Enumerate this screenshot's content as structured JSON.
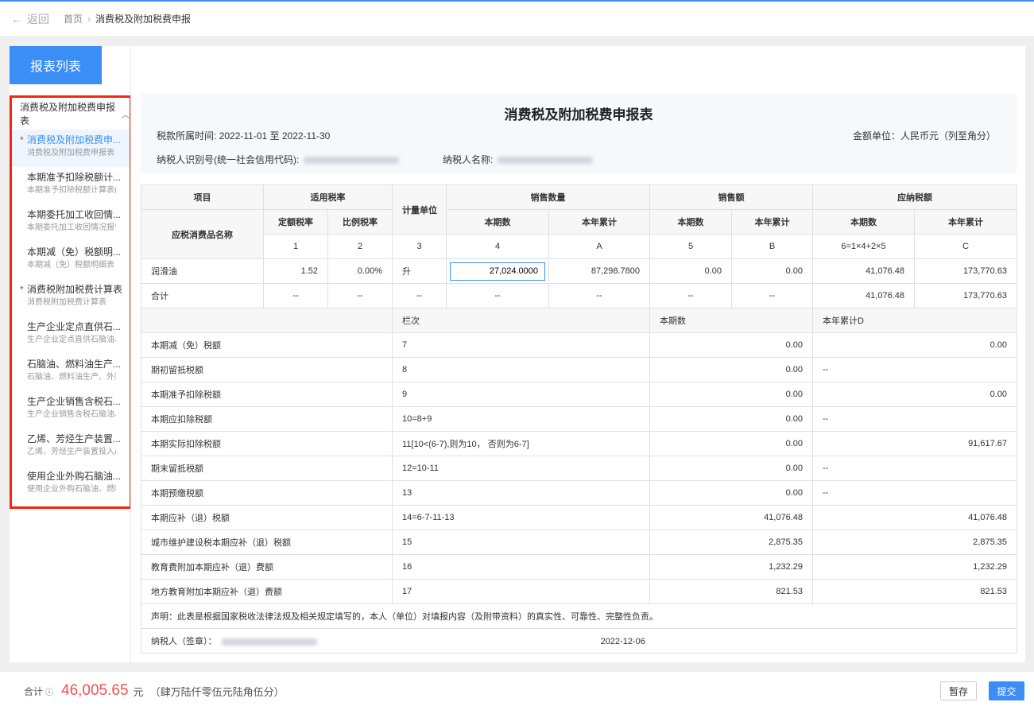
{
  "topbar": {
    "back": "返回",
    "breadcrumb": [
      "首页",
      "消费税及附加税费申报"
    ]
  },
  "sidebar": {
    "title": "报表列表",
    "group": "消费税及附加税费申报表",
    "items": [
      {
        "title": "消费税及附加税费申...",
        "sub": "消费税及附加税费申报表",
        "required": true,
        "active": true
      },
      {
        "title": "本期准予扣除税额计...",
        "sub": "本期准予扣除税额计算表(成",
        "required": false
      },
      {
        "title": "本期委托加工收回情...",
        "sub": "本期委托加工收回情况报告表",
        "required": false
      },
      {
        "title": "本期减（免）税额明...",
        "sub": "本期减（免）税额明细表",
        "required": false
      },
      {
        "title": "消费税附加税费计算表",
        "sub": "消费税附加税费计算表",
        "required": true
      },
      {
        "title": "生产企业定点直供石...",
        "sub": "生产企业定点直供石脑油、燃",
        "required": false
      },
      {
        "title": "石脑油、燃料油生产...",
        "sub": "石脑油、燃料油生产、外购、",
        "required": false
      },
      {
        "title": "生产企业销售含税石...",
        "sub": "生产企业销售含税石脑油、燃",
        "required": false
      },
      {
        "title": "乙烯、芳烃生产装置...",
        "sub": "乙烯、芳烃生产装置投入产出",
        "required": false
      },
      {
        "title": "使用企业外购石脑油...",
        "sub": "使用企业外购石脑油、燃料油",
        "required": false
      }
    ]
  },
  "report": {
    "title": "消费税及附加税费申报表",
    "period_label": "税款所属时间:",
    "period": "2022-11-01 至 2022-11-30",
    "unit": "金额单位：人民币元（列至角分）",
    "taxid_label": "纳税人识别号(统一社会信用代码):",
    "name_label": "纳税人名称:"
  },
  "table": {
    "h": {
      "item": "项目",
      "rate": "适用税率",
      "unit": "计量单位",
      "qty": "销售数量",
      "amount": "销售额",
      "tax": "应纳税额",
      "product": "应税消费品名称",
      "fixed": "定额税率",
      "ratio": "比例税率",
      "cur": "本期数",
      "ytd": "本年累计"
    },
    "idx": [
      "1",
      "2",
      "3",
      "4",
      "A",
      "5",
      "B",
      "6=1×4+2×5",
      "C"
    ],
    "row": {
      "name": "润滑油",
      "fixed": "1.52",
      "ratio": "0.00%",
      "unit": "升",
      "qty": "27,024.0000",
      "qty_ytd": "87,298.7800",
      "amt": "0.00",
      "amt_ytd": "0.00",
      "tax": "41,076.48",
      "tax_ytd": "173,770.63"
    },
    "total": {
      "name": "合计",
      "dash": "--",
      "tax": "41,076.48",
      "tax_ytd": "173,770.63"
    },
    "lower_head": {
      "col": "栏次",
      "cur": "本期数",
      "ytd": "本年累计D"
    },
    "lower": [
      {
        "name": "本期减（免）税额",
        "col": "7",
        "cur": "0.00",
        "ytd": "0.00"
      },
      {
        "name": "期初留抵税额",
        "col": "8",
        "cur": "0.00",
        "ytd": "--"
      },
      {
        "name": "本期准予扣除税额",
        "col": "9",
        "cur": "0.00",
        "ytd": "0.00"
      },
      {
        "name": "本期应扣除税额",
        "col": "10=8+9",
        "cur": "0.00",
        "ytd": "--"
      },
      {
        "name": "本期实际扣除税额",
        "col": "11[10<(6-7),则为10， 否则为6-7]",
        "cur": "0.00",
        "ytd": "91,617.67"
      },
      {
        "name": "期末留抵税额",
        "col": "12=10-11",
        "cur": "0.00",
        "ytd": "--"
      },
      {
        "name": "本期预缴税额",
        "col": "13",
        "cur": "0.00",
        "ytd": "--"
      },
      {
        "name": "本期应补（退）税额",
        "col": "14=6-7-11-13",
        "cur": "41,076.48",
        "ytd": "41,076.48"
      },
      {
        "name": "城市维护建设税本期应补（退）税额",
        "col": "15",
        "cur": "2,875.35",
        "ytd": "2,875.35"
      },
      {
        "name": "教育费附加本期应补（退）费额",
        "col": "16",
        "cur": "1,232.29",
        "ytd": "1,232.29"
      },
      {
        "name": "地方教育附加本期应补（退）费额",
        "col": "17",
        "cur": "821.53",
        "ytd": "821.53"
      }
    ],
    "declaration": "声明：此表是根据国家税收法律法规及相关规定填写的，本人（单位）对填报内容（及附带资料）的真实性、可靠性、完整性负责。",
    "signer_label": "纳税人（签章）：",
    "sign_date": "2022-12-06"
  },
  "footer": {
    "label": "合计",
    "amount": "46,005.65",
    "currency": "元",
    "amount_cn": "（肆万陆仟零伍元陆角伍分）",
    "save": "暂存",
    "submit": "提交"
  },
  "colors": {
    "accent": "#3a8ef6",
    "highlight": "#f0280f",
    "amount": "#f05050"
  }
}
